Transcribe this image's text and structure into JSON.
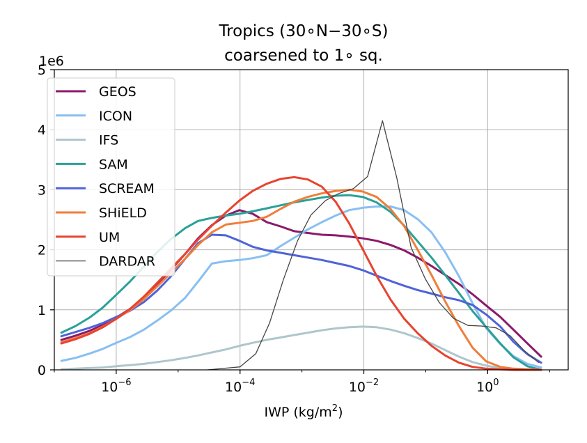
{
  "chart_data": {
    "type": "line",
    "title_line1": "Tropics (30∘N−30∘S)",
    "title_line2": "coarsened to 1∘ sq.",
    "xlabel": "IWP (kg/m",
    "xlabel_sup": "2",
    "xlabel_close": ")",
    "ylabel": "",
    "y_offset_label": "1e6",
    "x_scale": "log10",
    "xlim": [
      1e-07,
      20
    ],
    "ylim": [
      0,
      5
    ],
    "x_ticks": [
      {
        "value": 1e-06,
        "base": "10",
        "exp": "−6"
      },
      {
        "value": 0.0001,
        "base": "10",
        "exp": "−4"
      },
      {
        "value": 0.01,
        "base": "10",
        "exp": "−2"
      },
      {
        "value": 1,
        "base": "10",
        "exp": "0"
      }
    ],
    "y_ticks": [
      "0",
      "1",
      "2",
      "3",
      "4",
      "5"
    ],
    "y_tick_values": [
      0,
      1,
      2,
      3,
      4,
      5
    ],
    "grid": true,
    "legend_position": "top-left",
    "x": [
      1.3e-07,
      2.2e-07,
      3.7e-07,
      6.1e-07,
      1e-06,
      1.7e-06,
      2.8e-06,
      4.6e-06,
      7.7e-06,
      1.3e-05,
      2.1e-05,
      3.5e-05,
      5.9e-05,
      9.8e-05,
      0.00016,
      0.00027,
      0.00045,
      0.00075,
      0.00125,
      0.0021,
      0.0035,
      0.0058,
      0.0096,
      0.016,
      0.027,
      0.045,
      0.074,
      0.124,
      0.206,
      0.344,
      0.57,
      0.95,
      1.6,
      2.6,
      4.4,
      7.3
    ],
    "series": [
      {
        "name": "GEOS",
        "color": "#8b1a6b",
        "width": 3,
        "values": [
          0.5,
          0.57,
          0.65,
          0.75,
          0.87,
          1.02,
          1.2,
          1.42,
          1.67,
          1.93,
          2.19,
          2.41,
          2.57,
          2.66,
          2.6,
          2.46,
          2.39,
          2.31,
          2.28,
          2.25,
          2.24,
          2.22,
          2.19,
          2.15,
          2.08,
          1.99,
          1.87,
          1.73,
          1.58,
          1.43,
          1.26,
          1.07,
          0.88,
          0.67,
          0.44,
          0.22
        ]
      },
      {
        "name": "ICON",
        "color": "#88bff2",
        "width": 3,
        "values": [
          0.15,
          0.2,
          0.27,
          0.35,
          0.45,
          0.55,
          0.67,
          0.82,
          0.99,
          1.2,
          1.47,
          1.77,
          1.81,
          1.83,
          1.86,
          1.91,
          2.06,
          2.2,
          2.34,
          2.46,
          2.57,
          2.66,
          2.7,
          2.72,
          2.72,
          2.66,
          2.51,
          2.29,
          1.96,
          1.56,
          1.11,
          0.69,
          0.43,
          0.23,
          0.1,
          0.04
        ]
      },
      {
        "name": "IFS",
        "color": "#aec6cc",
        "width": 3,
        "values": [
          0.01,
          0.02,
          0.03,
          0.04,
          0.06,
          0.08,
          0.1,
          0.13,
          0.16,
          0.2,
          0.24,
          0.29,
          0.34,
          0.4,
          0.45,
          0.5,
          0.54,
          0.58,
          0.62,
          0.66,
          0.69,
          0.71,
          0.72,
          0.71,
          0.67,
          0.61,
          0.53,
          0.44,
          0.33,
          0.22,
          0.13,
          0.07,
          0.03,
          0.01,
          0.0,
          0.0
        ]
      },
      {
        "name": "SAM",
        "color": "#2aa198",
        "width": 3,
        "values": [
          0.62,
          0.73,
          0.87,
          1.04,
          1.25,
          1.48,
          1.72,
          1.96,
          2.18,
          2.36,
          2.48,
          2.53,
          2.57,
          2.6,
          2.64,
          2.69,
          2.74,
          2.79,
          2.83,
          2.87,
          2.9,
          2.91,
          2.88,
          2.79,
          2.63,
          2.4,
          2.14,
          1.87,
          1.58,
          1.28,
          0.98,
          0.71,
          0.44,
          0.21,
          0.06,
          0.0
        ]
      },
      {
        "name": "SCREAM",
        "color": "#4f63d9",
        "width": 3,
        "values": [
          0.56,
          0.63,
          0.7,
          0.78,
          0.88,
          0.99,
          1.13,
          1.32,
          1.56,
          1.85,
          2.11,
          2.25,
          2.24,
          2.15,
          2.05,
          1.99,
          1.95,
          1.91,
          1.87,
          1.83,
          1.78,
          1.73,
          1.66,
          1.57,
          1.48,
          1.4,
          1.33,
          1.27,
          1.21,
          1.16,
          1.08,
          0.92,
          0.72,
          0.47,
          0.26,
          0.12
        ]
      },
      {
        "name": "SHiELD",
        "color": "#f07e3a",
        "width": 3,
        "values": [
          0.46,
          0.53,
          0.61,
          0.72,
          0.85,
          1.0,
          1.18,
          1.39,
          1.62,
          1.85,
          2.08,
          2.29,
          2.42,
          2.45,
          2.48,
          2.55,
          2.68,
          2.8,
          2.88,
          2.94,
          2.98,
          3.0,
          2.97,
          2.88,
          2.68,
          2.39,
          2.0,
          1.58,
          1.14,
          0.73,
          0.37,
          0.14,
          0.05,
          0.02,
          0.01,
          0.0
        ]
      },
      {
        "name": "UM",
        "color": "#e8432f",
        "width": 3,
        "values": [
          0.44,
          0.51,
          0.6,
          0.71,
          0.85,
          1.02,
          1.22,
          1.45,
          1.69,
          1.93,
          2.17,
          2.4,
          2.62,
          2.82,
          2.98,
          3.1,
          3.18,
          3.21,
          3.17,
          3.05,
          2.8,
          2.44,
          2.01,
          1.57,
          1.17,
          0.85,
          0.61,
          0.4,
          0.24,
          0.12,
          0.05,
          0.02,
          0.01,
          0.0,
          0.0,
          0.0
        ]
      }
    ],
    "dardar": {
      "name": "DARDAR",
      "color": "#444444",
      "width": 1.3,
      "x": [
        3e-05,
        0.0001,
        0.00018,
        0.0003,
        0.0005,
        0.00085,
        0.0014,
        0.0024,
        0.004,
        0.0068,
        0.0115,
        0.02,
        0.034,
        0.058,
        0.098,
        0.166,
        0.28,
        0.48,
        0.81,
        1.37,
        2.3,
        3.9,
        6.7
      ],
      "values": [
        0.0,
        0.05,
        0.27,
        0.78,
        1.5,
        2.15,
        2.58,
        2.82,
        2.94,
        3.02,
        3.22,
        4.15,
        3.2,
        2.04,
        1.52,
        1.12,
        0.86,
        0.74,
        0.73,
        0.7,
        0.57,
        0.32,
        0.12
      ]
    }
  }
}
